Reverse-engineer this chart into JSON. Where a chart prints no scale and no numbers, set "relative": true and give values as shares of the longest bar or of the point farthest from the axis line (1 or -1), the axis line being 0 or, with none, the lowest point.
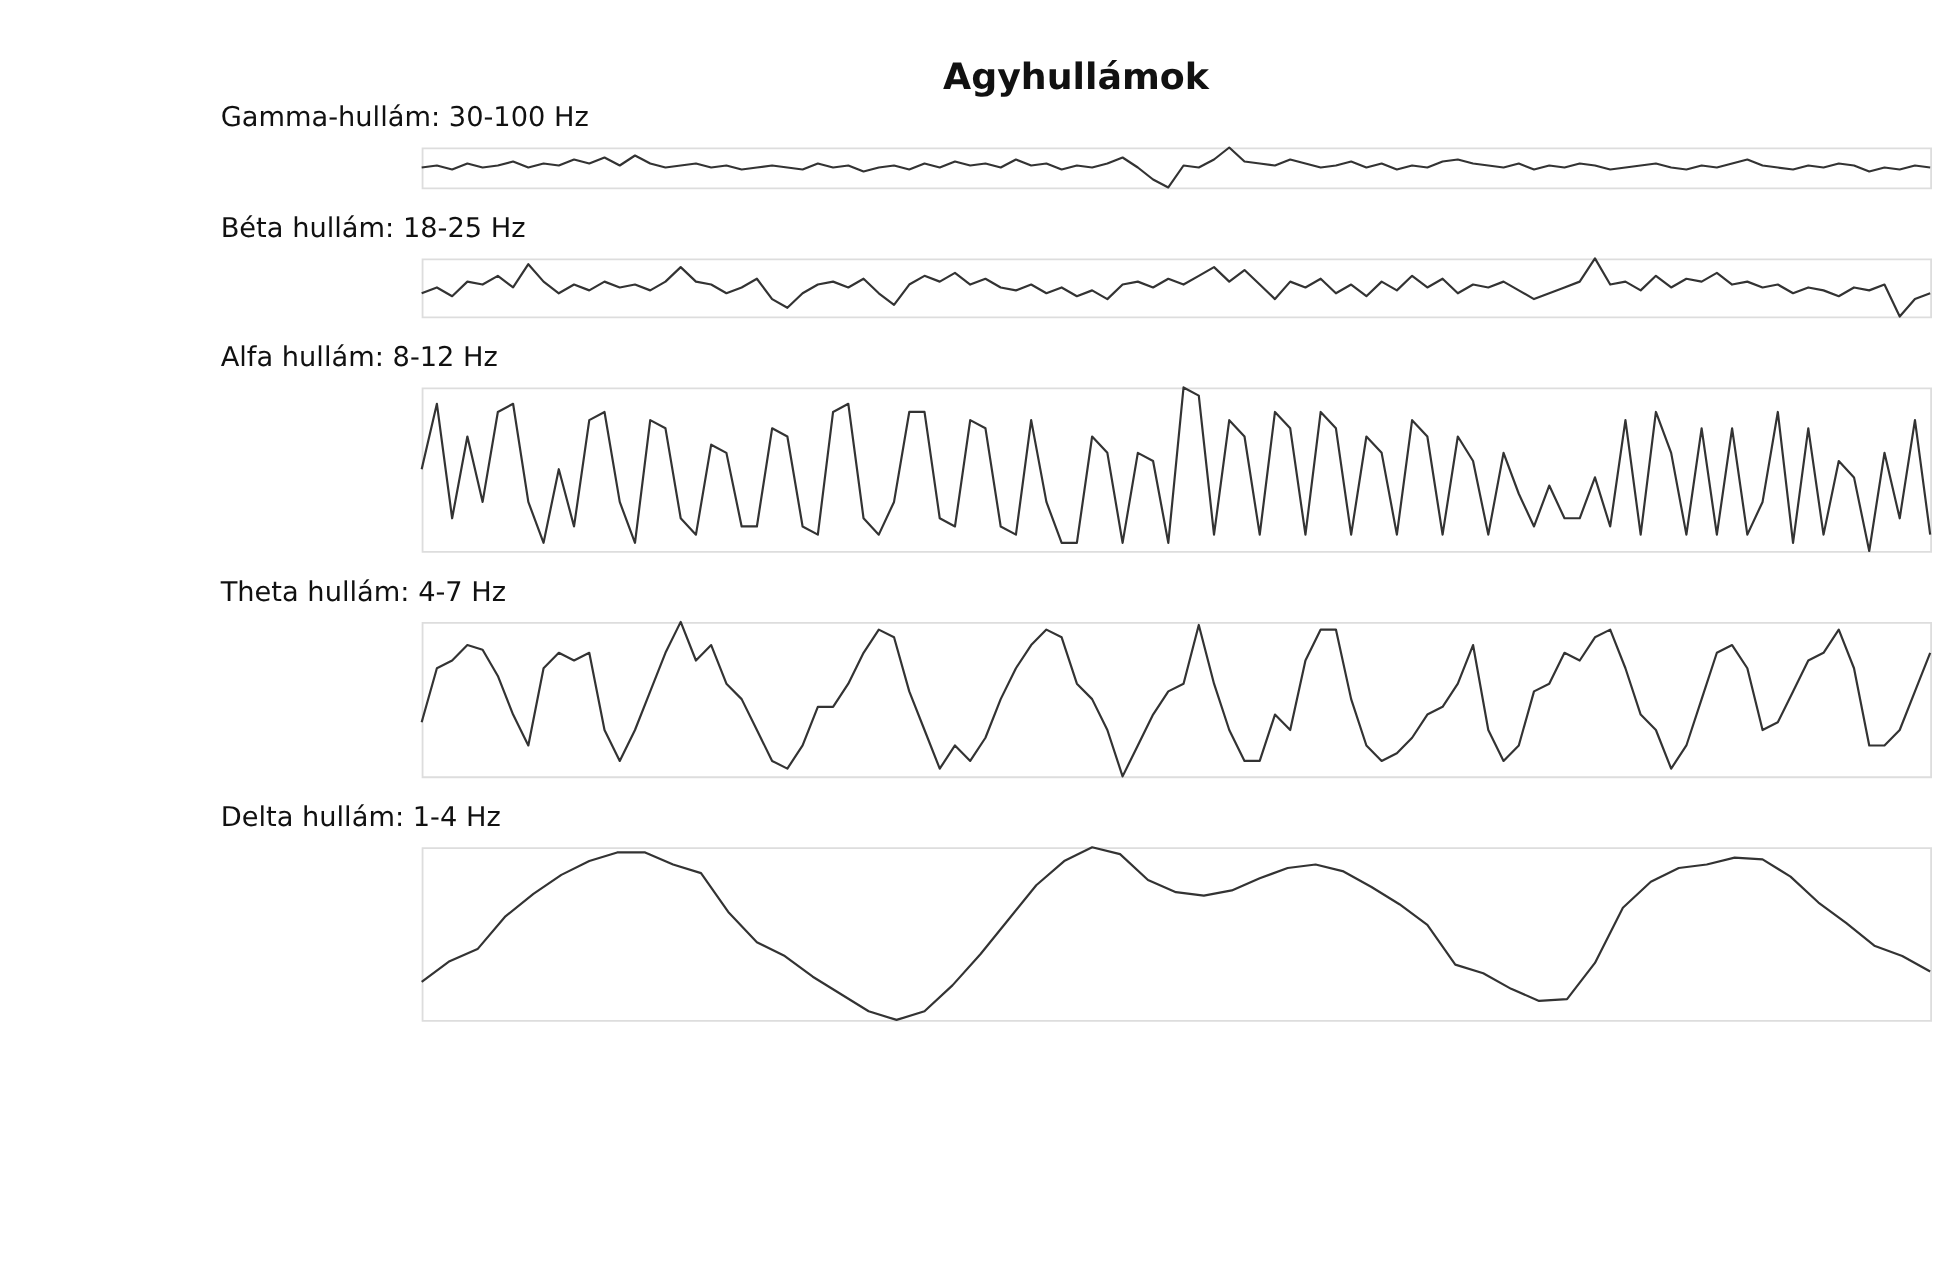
{
  "chart_data": [
    {
      "type": "line",
      "title": "Agyhullámok",
      "subtitle": "Gamma-hullám: 30-100 Hz",
      "relative": true,
      "categories": [
        null,
        null,
        null,
        null,
        null,
        null,
        null,
        null,
        null,
        null,
        null,
        null,
        null,
        null,
        null,
        null,
        null,
        null,
        null,
        null,
        null,
        null,
        null,
        null,
        null,
        null,
        null,
        null,
        null,
        null,
        null,
        null,
        null,
        null,
        null,
        null,
        null,
        null,
        null,
        null,
        null,
        null,
        null,
        null,
        null,
        null,
        null,
        null,
        null,
        null,
        null,
        null,
        null,
        null,
        null,
        null,
        null,
        null,
        null,
        null,
        null,
        null,
        null,
        null,
        null,
        null,
        null,
        null,
        null,
        null,
        null,
        null,
        null,
        null,
        null,
        null,
        null,
        null,
        null,
        null,
        null,
        null,
        null,
        null,
        null,
        null,
        null,
        null,
        null,
        null,
        null,
        null,
        null,
        null,
        null,
        null,
        null,
        null,
        null,
        null
      ],
      "series": [
        {
          "color": "#333333",
          "values": [
            0.5,
            0.55,
            0.45,
            0.6,
            0.5,
            0.55,
            0.65,
            0.5,
            0.6,
            0.55,
            0.7,
            0.6,
            0.75,
            0.55,
            0.8,
            0.6,
            0.5,
            0.55,
            0.6,
            0.5,
            0.55,
            0.45,
            0.5,
            0.55,
            0.5,
            0.45,
            0.6,
            0.5,
            0.55,
            0.4,
            0.5,
            0.55,
            0.45,
            0.6,
            0.5,
            0.65,
            0.55,
            0.6,
            0.5,
            0.7,
            0.55,
            0.6,
            0.45,
            0.55,
            0.5,
            0.6,
            0.75,
            0.5,
            0.2,
            0.0,
            0.55,
            0.5,
            0.7,
            1.0,
            0.65,
            0.6,
            0.55,
            0.7,
            0.6,
            0.5,
            0.55,
            0.65,
            0.5,
            0.6,
            0.45,
            0.55,
            0.5,
            0.65,
            0.7,
            0.6,
            0.55,
            0.5,
            0.6,
            0.45,
            0.55,
            0.5,
            0.6,
            0.55,
            0.45,
            0.5,
            0.55,
            0.6,
            0.5,
            0.45,
            0.55,
            0.5,
            0.6,
            0.7,
            0.55,
            0.5,
            0.45,
            0.55,
            0.5,
            0.6,
            0.55,
            0.4,
            0.5,
            0.45,
            0.55,
            0.5
          ]
        }
      ]
    },
    {
      "type": "line",
      "subtitle": "Béta hullám: 18-25 Hz",
      "relative": true,
      "categories": [
        null,
        null,
        null,
        null,
        null,
        null,
        null,
        null,
        null,
        null,
        null,
        null,
        null,
        null,
        null,
        null,
        null,
        null,
        null,
        null,
        null,
        null,
        null,
        null,
        null,
        null,
        null,
        null,
        null,
        null,
        null,
        null,
        null,
        null,
        null,
        null,
        null,
        null,
        null,
        null,
        null,
        null,
        null,
        null,
        null,
        null,
        null,
        null,
        null,
        null,
        null,
        null,
        null,
        null,
        null,
        null,
        null,
        null,
        null,
        null,
        null,
        null,
        null,
        null,
        null,
        null,
        null,
        null,
        null,
        null,
        null,
        null,
        null,
        null,
        null,
        null,
        null,
        null,
        null,
        null,
        null,
        null,
        null,
        null,
        null,
        null,
        null,
        null,
        null,
        null,
        null,
        null,
        null,
        null,
        null,
        null,
        null,
        null,
        null,
        null
      ],
      "series": [
        {
          "color": "#333333",
          "values": [
            0.4,
            0.5,
            0.35,
            0.6,
            0.55,
            0.7,
            0.5,
            0.9,
            0.6,
            0.4,
            0.55,
            0.45,
            0.6,
            0.5,
            0.55,
            0.45,
            0.6,
            0.85,
            0.6,
            0.55,
            0.4,
            0.5,
            0.65,
            0.3,
            0.15,
            0.4,
            0.55,
            0.6,
            0.5,
            0.65,
            0.4,
            0.2,
            0.55,
            0.7,
            0.6,
            0.75,
            0.55,
            0.65,
            0.5,
            0.45,
            0.55,
            0.4,
            0.5,
            0.35,
            0.45,
            0.3,
            0.55,
            0.6,
            0.5,
            0.65,
            0.55,
            0.7,
            0.85,
            0.6,
            0.8,
            0.55,
            0.3,
            0.6,
            0.5,
            0.65,
            0.4,
            0.55,
            0.35,
            0.6,
            0.45,
            0.7,
            0.5,
            0.65,
            0.4,
            0.55,
            0.5,
            0.6,
            0.45,
            0.3,
            0.4,
            0.5,
            0.6,
            1.0,
            0.55,
            0.6,
            0.45,
            0.7,
            0.5,
            0.65,
            0.6,
            0.75,
            0.55,
            0.6,
            0.5,
            0.55,
            0.4,
            0.5,
            0.45,
            0.35,
            0.5,
            0.45,
            0.55,
            0.0,
            0.3,
            0.4
          ]
        }
      ]
    },
    {
      "type": "line",
      "subtitle": "Alfa hullám: 8-12 Hz",
      "relative": true,
      "categories": [
        null,
        null,
        null,
        null,
        null,
        null,
        null,
        null,
        null,
        null,
        null,
        null,
        null,
        null,
        null,
        null,
        null,
        null,
        null,
        null,
        null,
        null,
        null,
        null,
        null,
        null,
        null,
        null,
        null,
        null,
        null,
        null,
        null,
        null,
        null,
        null,
        null,
        null,
        null,
        null,
        null,
        null,
        null,
        null,
        null,
        null,
        null,
        null,
        null,
        null,
        null,
        null,
        null,
        null,
        null,
        null,
        null,
        null,
        null,
        null,
        null,
        null,
        null,
        null,
        null,
        null,
        null,
        null,
        null,
        null,
        null,
        null,
        null,
        null,
        null,
        null,
        null,
        null,
        null,
        null,
        null,
        null,
        null,
        null,
        null,
        null,
        null,
        null,
        null,
        null,
        null,
        null,
        null,
        null,
        null,
        null,
        null,
        null,
        null,
        null
      ],
      "series": [
        {
          "color": "#333333",
          "values": [
            0.5,
            0.9,
            0.2,
            0.7,
            0.3,
            0.85,
            0.9,
            0.3,
            0.05,
            0.5,
            0.15,
            0.8,
            0.85,
            0.3,
            0.05,
            0.8,
            0.75,
            0.2,
            0.1,
            0.65,
            0.6,
            0.15,
            0.15,
            0.75,
            0.7,
            0.15,
            0.1,
            0.85,
            0.9,
            0.2,
            0.1,
            0.3,
            0.85,
            0.85,
            0.2,
            0.15,
            0.8,
            0.75,
            0.15,
            0.1,
            0.8,
            0.3,
            0.05,
            0.05,
            0.7,
            0.6,
            0.05,
            0.6,
            0.55,
            0.05,
            1.0,
            0.95,
            0.1,
            0.8,
            0.7,
            0.1,
            0.85,
            0.75,
            0.1,
            0.85,
            0.75,
            0.1,
            0.7,
            0.6,
            0.1,
            0.8,
            0.7,
            0.1,
            0.7,
            0.55,
            0.1,
            0.6,
            0.35,
            0.15,
            0.4,
            0.2,
            0.2,
            0.45,
            0.15,
            0.8,
            0.1,
            0.85,
            0.6,
            0.1,
            0.75,
            0.1,
            0.75,
            0.1,
            0.3,
            0.85,
            0.05,
            0.75,
            0.1,
            0.55,
            0.45,
            0.0,
            0.6,
            0.2,
            0.8,
            0.1
          ]
        }
      ]
    },
    {
      "type": "line",
      "subtitle": "Theta hullám: 4-7 Hz",
      "relative": true,
      "categories": [
        null,
        null,
        null,
        null,
        null,
        null,
        null,
        null,
        null,
        null,
        null,
        null,
        null,
        null,
        null,
        null,
        null,
        null,
        null,
        null,
        null,
        null,
        null,
        null,
        null,
        null,
        null,
        null,
        null,
        null,
        null,
        null,
        null,
        null,
        null,
        null,
        null,
        null,
        null,
        null,
        null,
        null,
        null,
        null,
        null,
        null,
        null,
        null,
        null,
        null,
        null,
        null,
        null,
        null,
        null,
        null,
        null,
        null,
        null,
        null,
        null,
        null,
        null,
        null,
        null,
        null,
        null,
        null,
        null,
        null,
        null,
        null,
        null,
        null,
        null,
        null,
        null,
        null,
        null,
        null,
        null,
        null,
        null,
        null,
        null,
        null,
        null,
        null,
        null,
        null,
        null,
        null,
        null,
        null,
        null,
        null,
        null,
        null,
        null,
        null
      ],
      "series": [
        {
          "color": "#333333",
          "values": [
            0.35,
            0.7,
            0.75,
            0.85,
            0.82,
            0.65,
            0.4,
            0.2,
            0.7,
            0.8,
            0.75,
            0.8,
            0.3,
            0.1,
            0.3,
            0.55,
            0.8,
            1.0,
            0.75,
            0.85,
            0.6,
            0.5,
            0.3,
            0.1,
            0.05,
            0.2,
            0.45,
            0.45,
            0.6,
            0.8,
            0.95,
            0.9,
            0.55,
            0.3,
            0.05,
            0.2,
            0.1,
            0.25,
            0.5,
            0.7,
            0.85,
            0.95,
            0.9,
            0.6,
            0.5,
            0.3,
            0.0,
            0.2,
            0.4,
            0.55,
            0.6,
            0.98,
            0.6,
            0.3,
            0.1,
            0.1,
            0.4,
            0.3,
            0.75,
            0.95,
            0.95,
            0.5,
            0.2,
            0.1,
            0.15,
            0.25,
            0.4,
            0.45,
            0.6,
            0.85,
            0.3,
            0.1,
            0.2,
            0.55,
            0.6,
            0.8,
            0.75,
            0.9,
            0.95,
            0.7,
            0.4,
            0.3,
            0.05,
            0.2,
            0.5,
            0.8,
            0.85,
            0.7,
            0.3,
            0.35,
            0.55,
            0.75,
            0.8,
            0.95,
            0.7,
            0.2,
            0.2,
            0.3,
            0.55,
            0.8
          ]
        }
      ]
    },
    {
      "type": "line",
      "subtitle": "Delta hullám: 1-4 Hz",
      "relative": true,
      "categories": [
        null,
        null,
        null,
        null,
        null,
        null,
        null,
        null,
        null,
        null,
        null,
        null,
        null,
        null,
        null,
        null,
        null,
        null,
        null,
        null,
        null,
        null,
        null,
        null,
        null,
        null,
        null,
        null,
        null,
        null,
        null,
        null,
        null,
        null,
        null,
        null,
        null,
        null,
        null,
        null,
        null,
        null,
        null,
        null,
        null,
        null,
        null,
        null,
        null,
        null,
        null,
        null,
        null,
        null,
        null
      ],
      "series": [
        {
          "color": "#333333",
          "values": [
            0.22,
            0.34,
            0.41,
            0.6,
            0.73,
            0.84,
            0.92,
            0.97,
            0.97,
            0.9,
            0.85,
            0.62,
            0.45,
            0.37,
            0.25,
            0.15,
            0.05,
            0,
            0.05,
            0.2,
            0.38,
            0.58,
            0.78,
            0.92,
            1,
            0.96,
            0.81,
            0.74,
            0.72,
            0.75,
            0.82,
            0.88,
            0.9,
            0.86,
            0.77,
            0.67,
            0.55,
            0.32,
            0.27,
            0.18,
            0.11,
            0.12,
            0.33,
            0.65,
            0.8,
            0.88,
            0.9,
            0.94,
            0.93,
            0.83,
            0.68,
            0.56,
            0.43,
            0.37,
            0.28
          ]
        }
      ]
    }
  ]
}
